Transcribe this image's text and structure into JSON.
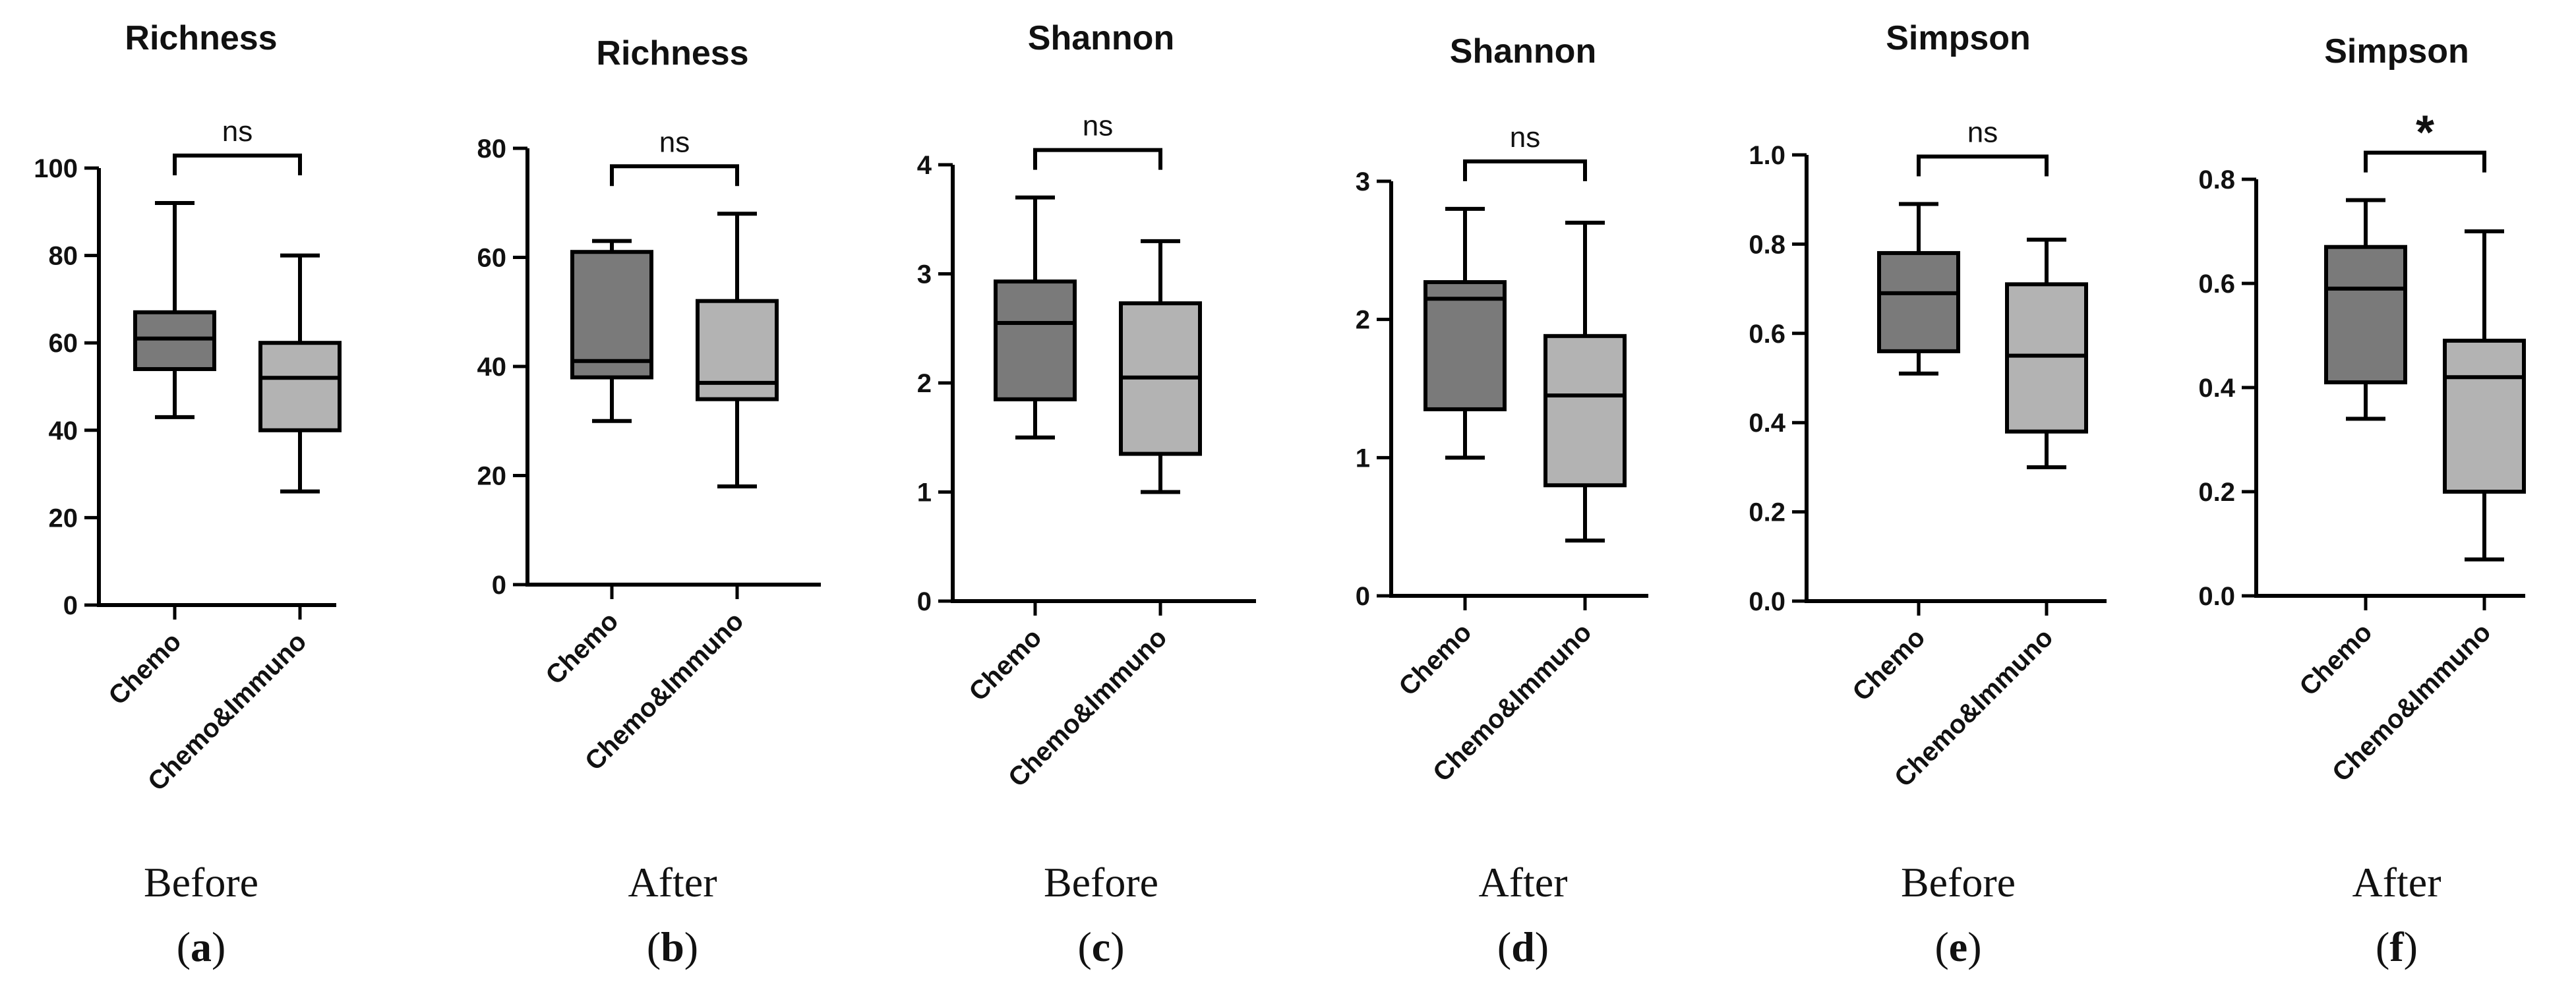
{
  "colors": {
    "group1": "#7a7a7a",
    "group2": "#b3b3b3",
    "line": "#000000"
  },
  "chart_data": [
    {
      "type": "box",
      "title": "Richness",
      "categories": [
        "Chemo",
        "Chemo&Immuno"
      ],
      "ylim": [
        0,
        100
      ],
      "yticks": [
        "0",
        "20",
        "40",
        "60",
        "80",
        "100"
      ],
      "series": [
        {
          "name": "Chemo",
          "min": 43,
          "q1": 54,
          "median": 61,
          "q3": 67,
          "max": 92
        },
        {
          "name": "Chemo&Immuno",
          "min": 26,
          "q1": 40,
          "median": 52,
          "q3": 60,
          "max": 80
        }
      ],
      "significance": "ns",
      "caption": "Before",
      "label": "(a)"
    },
    {
      "type": "box",
      "title": "Richness",
      "categories": [
        "Chemo",
        "Chemo&Immuno"
      ],
      "ylim": [
        0,
        80
      ],
      "yticks": [
        "0",
        "20",
        "40",
        "60",
        "80"
      ],
      "series": [
        {
          "name": "Chemo",
          "min": 30,
          "q1": 38,
          "median": 41,
          "q3": 61,
          "max": 63
        },
        {
          "name": "Chemo&Immuno",
          "min": 18,
          "q1": 34,
          "median": 37,
          "q3": 52,
          "max": 68
        }
      ],
      "significance": "ns",
      "caption": "After",
      "label": "(b)"
    },
    {
      "type": "box",
      "title": "Shannon",
      "categories": [
        "Chemo",
        "Chemo&Immuno"
      ],
      "ylim": [
        0,
        4
      ],
      "yticks": [
        "0",
        "1",
        "2",
        "3",
        "4"
      ],
      "series": [
        {
          "name": "Chemo",
          "min": 1.5,
          "q1": 1.85,
          "median": 2.55,
          "q3": 2.93,
          "max": 3.7
        },
        {
          "name": "Chemo&Immuno",
          "min": 1.0,
          "q1": 1.35,
          "median": 2.05,
          "q3": 2.73,
          "max": 3.3
        }
      ],
      "significance": "ns",
      "caption": "Before",
      "label": "(c)"
    },
    {
      "type": "box",
      "title": "Shannon",
      "categories": [
        "Chemo",
        "Chemo&Immuno"
      ],
      "ylim": [
        0,
        3
      ],
      "yticks": [
        "0",
        "1",
        "2",
        "3"
      ],
      "series": [
        {
          "name": "Chemo",
          "min": 1.0,
          "q1": 1.35,
          "median": 2.15,
          "q3": 2.27,
          "max": 2.8
        },
        {
          "name": "Chemo&Immuno",
          "min": 0.4,
          "q1": 0.8,
          "median": 1.45,
          "q3": 1.88,
          "max": 2.7
        }
      ],
      "significance": "ns",
      "caption": "After",
      "label": "(d)"
    },
    {
      "type": "box",
      "title": "Simpson",
      "categories": [
        "Chemo",
        "Chemo&Immuno"
      ],
      "ylim": [
        0,
        1.0
      ],
      "yticks": [
        "0.0",
        "0.2",
        "0.4",
        "0.6",
        "0.8",
        "1.0"
      ],
      "series": [
        {
          "name": "Chemo",
          "min": 0.51,
          "q1": 0.56,
          "median": 0.69,
          "q3": 0.78,
          "max": 0.89
        },
        {
          "name": "Chemo&Immuno",
          "min": 0.3,
          "q1": 0.38,
          "median": 0.55,
          "q3": 0.71,
          "max": 0.81
        }
      ],
      "significance": "ns",
      "caption": "Before",
      "label": "(e)"
    },
    {
      "type": "box",
      "title": "Simpson",
      "categories": [
        "Chemo",
        "Chemo&Immuno"
      ],
      "ylim": [
        0,
        0.8
      ],
      "yticks": [
        "0.0",
        "0.2",
        "0.4",
        "0.6",
        "0.8"
      ],
      "series": [
        {
          "name": "Chemo",
          "min": 0.34,
          "q1": 0.41,
          "median": 0.59,
          "q3": 0.67,
          "max": 0.76
        },
        {
          "name": "Chemo&Immuno",
          "min": 0.07,
          "q1": 0.2,
          "median": 0.42,
          "q3": 0.49,
          "max": 0.7
        }
      ],
      "significance": "*",
      "caption": "After",
      "label": "(f)"
    }
  ]
}
